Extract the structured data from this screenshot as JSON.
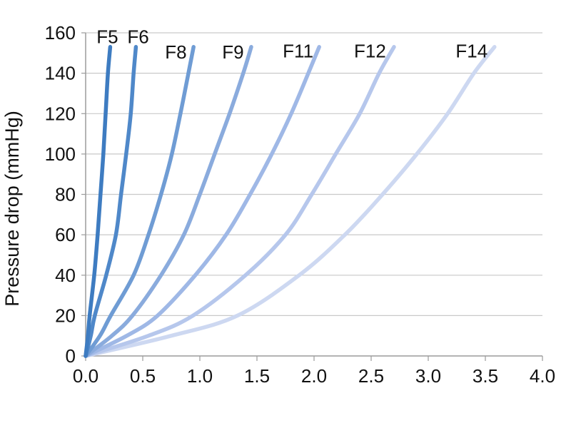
{
  "chart_data": {
    "type": "line",
    "title": "",
    "xlabel": "",
    "ylabel": "Pressure drop (mmHg)",
    "xlim": [
      0.0,
      4.0
    ],
    "ylim": [
      0,
      160
    ],
    "x_ticks": [
      0.0,
      0.5,
      1.0,
      1.5,
      2.0,
      2.5,
      3.0,
      3.5,
      4.0
    ],
    "x_tick_labels": [
      "0.0",
      "0.5",
      "1.0",
      "1.5",
      "2.0",
      "2.5",
      "3.0",
      "3.5",
      "4.0"
    ],
    "y_ticks": [
      0,
      20,
      40,
      60,
      80,
      100,
      120,
      140,
      160
    ],
    "grid": "horizontal",
    "legend_position": "inline-labels-at-line-tops",
    "axis_color": "#9b9b9b",
    "grid_color": "#c9c9c9",
    "text_color": "#111111",
    "pressure_mmHg": [
      0,
      10,
      20,
      40,
      60,
      80,
      100,
      120,
      140,
      153
    ],
    "series": [
      {
        "name": "F5",
        "color": "#3e7cc1",
        "x": [
          0,
          0.02,
          0.035,
          0.075,
          0.105,
          0.13,
          0.155,
          0.175,
          0.195,
          0.215
        ],
        "label_pos": [
          0.19,
          158
        ]
      },
      {
        "name": "F6",
        "color": "#4f88c9",
        "x": [
          0,
          0.045,
          0.08,
          0.18,
          0.265,
          0.31,
          0.355,
          0.395,
          0.42,
          0.44
        ],
        "label_pos": [
          0.46,
          158
        ]
      },
      {
        "name": "F8",
        "color": "#6f9cd4",
        "x": [
          0,
          0.125,
          0.22,
          0.42,
          0.55,
          0.66,
          0.755,
          0.83,
          0.9,
          0.945
        ],
        "label_pos": [
          0.79,
          150.5
        ]
      },
      {
        "name": "F9",
        "color": "#8aabdd",
        "x": [
          0,
          0.23,
          0.41,
          0.66,
          0.86,
          1.0,
          1.13,
          1.26,
          1.38,
          1.45
        ],
        "label_pos": [
          1.29,
          150.5
        ]
      },
      {
        "name": "F11",
        "color": "#9fb8e6",
        "x": [
          0,
          0.36,
          0.63,
          0.96,
          1.23,
          1.44,
          1.63,
          1.8,
          1.95,
          2.045
        ],
        "label_pos": [
          1.86,
          151
        ]
      },
      {
        "name": "F12",
        "color": "#b6c7ec",
        "x": [
          0,
          0.55,
          0.94,
          1.4,
          1.75,
          1.98,
          2.19,
          2.4,
          2.57,
          2.7
        ],
        "label_pos": [
          2.49,
          151
        ]
      },
      {
        "name": "F14",
        "color": "#cdd8f1",
        "x": [
          0,
          0.75,
          1.33,
          1.87,
          2.27,
          2.6,
          2.9,
          3.17,
          3.4,
          3.58
        ],
        "label_pos": [
          3.38,
          151
        ]
      }
    ]
  }
}
